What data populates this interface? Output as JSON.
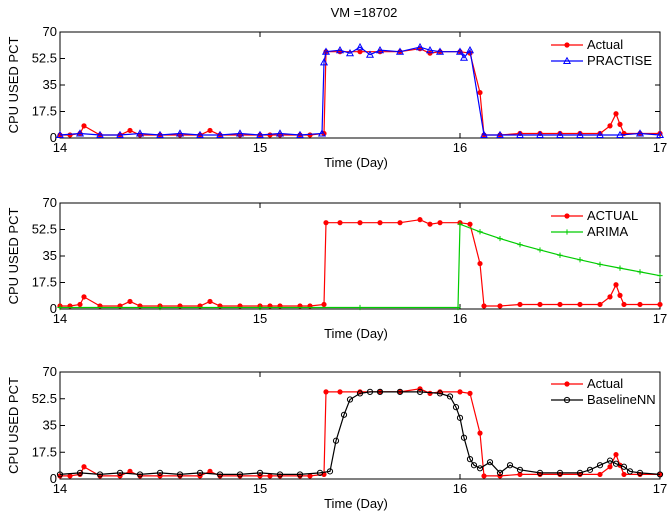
{
  "figure": {
    "title": "VM =18702"
  },
  "chart_data": [
    {
      "type": "line",
      "title": "VM =18702",
      "xlabel": "Time (Day)",
      "ylabel": "CPU USED PCT",
      "xlim": [
        14,
        17
      ],
      "ylim": [
        0,
        70
      ],
      "xticks": [
        14,
        15,
        16,
        17
      ],
      "yticks": [
        0,
        17.5,
        35,
        52.5,
        70
      ],
      "grid": false,
      "legend_position": "top-right",
      "series": [
        {
          "name": "Actual",
          "color": "#ff0000",
          "marker": "dot",
          "x": [
            14.0,
            14.05,
            14.1,
            14.12,
            14.2,
            14.3,
            14.35,
            14.4,
            14.5,
            14.6,
            14.7,
            14.75,
            14.8,
            14.9,
            15.0,
            15.05,
            15.1,
            15.2,
            15.25,
            15.32,
            15.33,
            15.4,
            15.5,
            15.6,
            15.7,
            15.8,
            15.85,
            15.9,
            16.0,
            16.05,
            16.1,
            16.12,
            16.2,
            16.3,
            16.4,
            16.5,
            16.6,
            16.7,
            16.75,
            16.78,
            16.8,
            16.82,
            16.9,
            17.0
          ],
          "y": [
            2,
            2,
            3,
            8,
            2,
            2,
            5,
            2,
            2,
            2,
            2,
            5,
            2,
            2,
            2,
            2,
            2,
            2,
            2,
            3,
            57,
            57,
            57,
            57,
            57,
            59,
            56,
            57,
            57,
            56,
            30,
            2,
            2,
            3,
            3,
            3,
            3,
            3,
            8,
            16,
            9,
            3,
            3,
            3
          ]
        },
        {
          "name": "PRACTISE",
          "color": "#0000ff",
          "marker": "triangle",
          "x": [
            14.0,
            14.1,
            14.2,
            14.3,
            14.4,
            14.5,
            14.6,
            14.7,
            14.8,
            14.9,
            15.0,
            15.1,
            15.2,
            15.31,
            15.32,
            15.33,
            15.4,
            15.45,
            15.5,
            15.55,
            15.6,
            15.7,
            15.8,
            15.85,
            15.9,
            16.0,
            16.02,
            16.05,
            16.12,
            16.2,
            16.3,
            16.4,
            16.5,
            16.6,
            16.7,
            16.8,
            16.9,
            17.0
          ],
          "y": [
            2,
            3,
            2,
            2,
            3,
            2,
            3,
            2,
            2,
            3,
            2,
            3,
            2,
            3,
            50,
            57,
            58,
            56,
            60,
            55,
            58,
            57,
            60,
            58,
            57,
            57,
            53,
            58,
            2,
            2,
            2,
            2,
            2,
            2,
            2,
            2,
            3,
            2
          ]
        }
      ]
    },
    {
      "type": "line",
      "xlabel": "Time (Day)",
      "ylabel": "CPU USED PCT",
      "xlim": [
        14,
        17
      ],
      "ylim": [
        0,
        70
      ],
      "xticks": [
        14,
        15,
        16,
        17
      ],
      "yticks": [
        0,
        17.5,
        35,
        52.5,
        70
      ],
      "grid": false,
      "legend_position": "top-right",
      "series": [
        {
          "name": "ACTUAL",
          "color": "#ff0000",
          "marker": "dot",
          "x": [
            14.0,
            14.05,
            14.1,
            14.12,
            14.2,
            14.3,
            14.35,
            14.4,
            14.5,
            14.6,
            14.7,
            14.75,
            14.8,
            14.9,
            15.0,
            15.05,
            15.1,
            15.2,
            15.25,
            15.32,
            15.33,
            15.4,
            15.5,
            15.6,
            15.7,
            15.8,
            15.85,
            15.9,
            16.0,
            16.05,
            16.1,
            16.12,
            16.2,
            16.3,
            16.4,
            16.5,
            16.6,
            16.7,
            16.75,
            16.78,
            16.8,
            16.82,
            16.9,
            17.0
          ],
          "y": [
            2,
            2,
            3,
            8,
            2,
            2,
            5,
            2,
            2,
            2,
            2,
            5,
            2,
            2,
            2,
            2,
            2,
            2,
            2,
            3,
            57,
            57,
            57,
            57,
            57,
            59,
            56,
            57,
            57,
            56,
            30,
            2,
            2,
            3,
            3,
            3,
            3,
            3,
            8,
            16,
            9,
            3,
            3,
            3
          ]
        },
        {
          "name": "ARIMA",
          "color": "#00cc00",
          "marker": "plus",
          "x": [
            14.0,
            14.5,
            15.0,
            15.5,
            15.99,
            16.0,
            16.1,
            16.2,
            16.3,
            16.4,
            16.5,
            16.6,
            16.7,
            16.8,
            16.9,
            17.0
          ],
          "y": [
            1,
            1,
            1,
            1,
            1,
            56,
            51,
            46.5,
            42.5,
            39,
            35.5,
            32.5,
            29.5,
            27,
            24.5,
            22
          ]
        }
      ]
    },
    {
      "type": "line",
      "xlabel": "Time (Day)",
      "ylabel": "CPU USED PCT",
      "xlim": [
        14,
        17
      ],
      "ylim": [
        0,
        70
      ],
      "xticks": [
        14,
        15,
        16,
        17
      ],
      "yticks": [
        0,
        17.5,
        35,
        52.5,
        70
      ],
      "grid": false,
      "legend_position": "top-right",
      "series": [
        {
          "name": "Actual",
          "color": "#ff0000",
          "marker": "dot",
          "x": [
            14.0,
            14.05,
            14.1,
            14.12,
            14.2,
            14.3,
            14.35,
            14.4,
            14.5,
            14.6,
            14.7,
            14.75,
            14.8,
            14.9,
            15.0,
            15.05,
            15.1,
            15.2,
            15.25,
            15.32,
            15.33,
            15.4,
            15.5,
            15.6,
            15.7,
            15.8,
            15.85,
            15.9,
            16.0,
            16.05,
            16.1,
            16.12,
            16.2,
            16.3,
            16.4,
            16.5,
            16.6,
            16.7,
            16.75,
            16.78,
            16.8,
            16.82,
            16.9,
            17.0
          ],
          "y": [
            2,
            2,
            3,
            8,
            2,
            2,
            5,
            2,
            2,
            2,
            2,
            5,
            2,
            2,
            2,
            2,
            2,
            2,
            2,
            3,
            57,
            57,
            57,
            57,
            57,
            59,
            56,
            57,
            57,
            56,
            30,
            2,
            2,
            3,
            3,
            3,
            3,
            3,
            8,
            16,
            9,
            3,
            3,
            3
          ]
        },
        {
          "name": "BaselineNN",
          "color": "#000000",
          "marker": "circle",
          "x": [
            14.0,
            14.1,
            14.2,
            14.3,
            14.4,
            14.5,
            14.6,
            14.7,
            14.8,
            14.9,
            15.0,
            15.1,
            15.2,
            15.3,
            15.35,
            15.38,
            15.42,
            15.45,
            15.5,
            15.55,
            15.6,
            15.7,
            15.8,
            15.9,
            15.95,
            15.98,
            16.0,
            16.02,
            16.05,
            16.07,
            16.1,
            16.15,
            16.2,
            16.25,
            16.3,
            16.4,
            16.5,
            16.6,
            16.65,
            16.7,
            16.75,
            16.78,
            16.82,
            16.85,
            16.9,
            17.0
          ],
          "y": [
            3,
            4,
            3,
            4,
            3,
            4,
            3,
            4,
            3,
            3,
            4,
            3,
            3,
            4,
            5,
            25,
            42,
            52,
            56,
            57,
            57,
            57,
            57,
            56,
            54,
            47,
            40,
            27,
            13,
            9,
            7,
            11,
            4,
            9,
            6,
            4,
            4,
            4,
            6,
            9,
            12,
            10,
            8,
            5,
            4,
            3
          ]
        }
      ]
    }
  ]
}
